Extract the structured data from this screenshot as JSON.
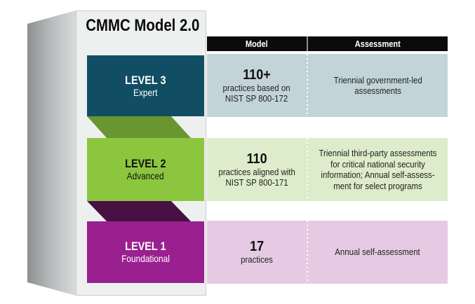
{
  "diagram_title": "CMMC Model 2.0",
  "table_header": {
    "model": "Model",
    "assessment": "Assessment"
  },
  "levels": [
    {
      "label": "LEVEL 3",
      "tier": "Expert",
      "model_value": "110+",
      "model_desc": [
        "practices based on",
        "NIST SP 800-172"
      ],
      "assessment": [
        "Triennial government-led",
        "assessments"
      ],
      "colors": {
        "box": "#114e63",
        "box_text": "#ffffff",
        "row": "#c3d4d9"
      }
    },
    {
      "label": "LEVEL 2",
      "tier": "Advanced",
      "model_value": "110",
      "model_desc": [
        "practices aligned with",
        "NIST SP 800-171"
      ],
      "assessment": [
        "Triennial third-party assessments",
        "for critical national security",
        "information; Annual self-assess-",
        "ment for select programs"
      ],
      "colors": {
        "box": "#8cc63f",
        "box_text": "#121212",
        "row": "#ddecca"
      }
    },
    {
      "label": "LEVEL 1",
      "tier": "Foundational",
      "model_value": "17",
      "model_desc": [
        "practices"
      ],
      "assessment": [
        "Annual self-assessment"
      ],
      "colors": {
        "box": "#9a2090",
        "box_text": "#ffffff",
        "row": "#e6c9e2"
      }
    }
  ],
  "connectors": [
    {
      "from": "LEVEL 3",
      "to": "LEVEL 2",
      "color": "#699630"
    },
    {
      "from": "LEVEL 2",
      "to": "LEVEL 1",
      "color": "#471043"
    }
  ],
  "palette": {
    "header_bg": "#0b0b0b",
    "header_text": "#ffffff",
    "panel_bg": "#eef0f0",
    "panel_border": "#c6cbcb",
    "page_bg": "#ffffff"
  }
}
